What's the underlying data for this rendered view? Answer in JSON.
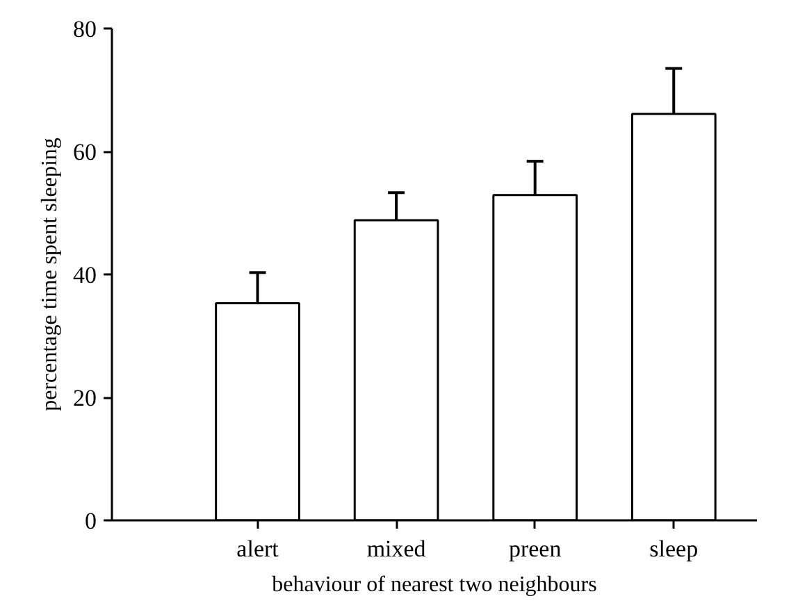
{
  "chart_data": {
    "type": "bar",
    "xlabel": "behaviour of nearest two neighbours",
    "ylabel": "percentage time spent sleeping",
    "categories": [
      "alert",
      "mixed",
      "preen",
      "sleep"
    ],
    "values": [
      35.3,
      48.8,
      52.9,
      66.1
    ],
    "errors": [
      [
        35.3,
        40.3
      ],
      [
        48.8,
        53.3
      ],
      [
        52.9,
        58.4
      ],
      [
        66.1,
        73.5
      ]
    ],
    "color": "#ffffff",
    "ylim": [
      0,
      80
    ],
    "yticks": [
      0,
      20,
      40,
      60,
      80
    ],
    "grid": false
  }
}
